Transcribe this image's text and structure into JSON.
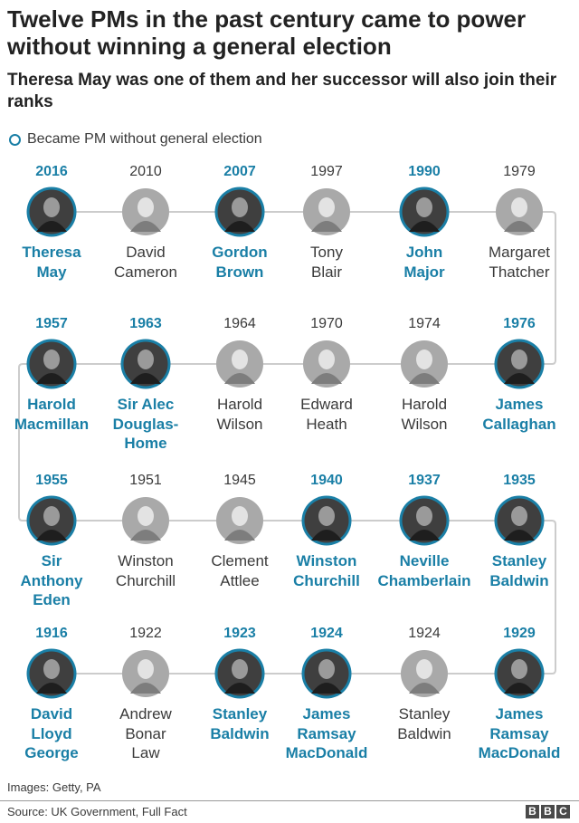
{
  "title": "Twelve PMs in the past century came to power without winning a general election",
  "subtitle": "Theresa May was one of them and her successor will also join their ranks",
  "legend": {
    "label": "Became PM without general election",
    "color": "#1a7fa6"
  },
  "credit": "Images: Getty, PA",
  "source": "Source: UK Government, Full Fact",
  "brand": {
    "letters": [
      "B",
      "B",
      "C"
    ]
  },
  "colors": {
    "highlight": "#1a7fa6",
    "plain_text": "#3a3a3a",
    "connector": "#cccccc"
  },
  "chart_data": {
    "type": "timeline",
    "rows": [
      [
        {
          "year": "2016",
          "name": "Theresa\nMay",
          "no_election": true
        },
        {
          "year": "2010",
          "name": "David\nCameron",
          "no_election": false
        },
        {
          "year": "2007",
          "name": "Gordon\nBrown",
          "no_election": true
        },
        {
          "year": "1997",
          "name": "Tony\nBlair",
          "no_election": false
        },
        {
          "year": "1990",
          "name": "John\nMajor",
          "no_election": true
        },
        {
          "year": "1979",
          "name": "Margaret\nThatcher",
          "no_election": false
        }
      ],
      [
        {
          "year": "1957",
          "name": "Harold\nMacmillan",
          "no_election": true
        },
        {
          "year": "1963",
          "name": "Sir Alec\nDouglas-\nHome",
          "no_election": true
        },
        {
          "year": "1964",
          "name": "Harold\nWilson",
          "no_election": false
        },
        {
          "year": "1970",
          "name": "Edward\nHeath",
          "no_election": false
        },
        {
          "year": "1974",
          "name": "Harold\nWilson",
          "no_election": false
        },
        {
          "year": "1976",
          "name": "James\nCallaghan",
          "no_election": true
        }
      ],
      [
        {
          "year": "1955",
          "name": "Sir\nAnthony\nEden",
          "no_election": true
        },
        {
          "year": "1951",
          "name": "Winston\nChurchill",
          "no_election": false
        },
        {
          "year": "1945",
          "name": "Clement\nAttlee",
          "no_election": false
        },
        {
          "year": "1940",
          "name": "Winston\nChurchill",
          "no_election": true
        },
        {
          "year": "1937",
          "name": "Neville\nChamberlain",
          "no_election": true
        },
        {
          "year": "1935",
          "name": "Stanley\nBaldwin",
          "no_election": true
        }
      ],
      [
        {
          "year": "1916",
          "name": "David\nLloyd\nGeorge",
          "no_election": true
        },
        {
          "year": "1922",
          "name": "Andrew\nBonar\nLaw",
          "no_election": false
        },
        {
          "year": "1923",
          "name": "Stanley\nBaldwin",
          "no_election": true
        },
        {
          "year": "1924",
          "name": "James\nRamsay\nMacDonald",
          "no_election": true
        },
        {
          "year": "1924",
          "name": "Stanley\nBaldwin",
          "no_election": false
        },
        {
          "year": "1929",
          "name": "James\nRamsay\nMacDonald",
          "no_election": true
        }
      ]
    ]
  }
}
